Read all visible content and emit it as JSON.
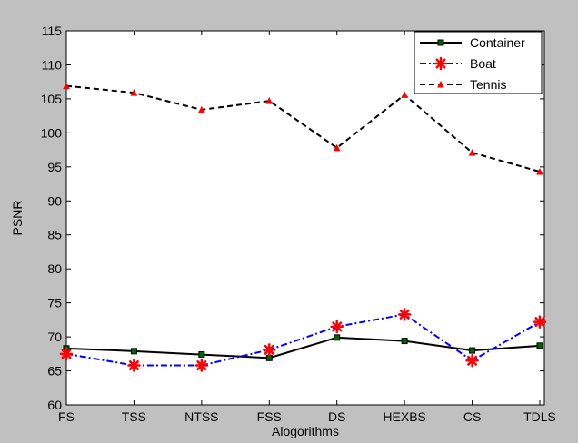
{
  "chart_data": {
    "type": "line",
    "xlabel": "Alogorithms",
    "ylabel": "PSNR",
    "categories": [
      "FS",
      "TSS",
      "NTSS",
      "FSS",
      "DS",
      "HEXBS",
      "CS",
      "TDLS"
    ],
    "ylim": [
      60,
      115
    ],
    "yticks": [
      60,
      65,
      70,
      75,
      80,
      85,
      90,
      95,
      100,
      105,
      110,
      115
    ],
    "grid": false,
    "legend_position": "top-right",
    "series": [
      {
        "name": "Container",
        "color": "#000000",
        "dash": "solid",
        "marker": "square",
        "markerColor": "#006400",
        "values": [
          68.3,
          67.9,
          67.4,
          66.9,
          69.9,
          69.4,
          68.0,
          68.7
        ]
      },
      {
        "name": "Boat",
        "color": "#0000ff",
        "dash": "dashdot",
        "marker": "asterisk",
        "markerColor": "#ff0000",
        "values": [
          67.5,
          65.8,
          65.8,
          68.1,
          71.5,
          73.3,
          66.5,
          72.2
        ]
      },
      {
        "name": "Tennis",
        "color": "#000000",
        "dash": "dashed",
        "marker": "triangle",
        "markerColor": "#ff0000",
        "values": [
          106.9,
          105.9,
          103.4,
          104.7,
          97.8,
          105.6,
          97.1,
          94.3
        ]
      }
    ]
  },
  "colors": {
    "figure_background": "#c0c0c0",
    "axes_background": "#ffffff"
  }
}
